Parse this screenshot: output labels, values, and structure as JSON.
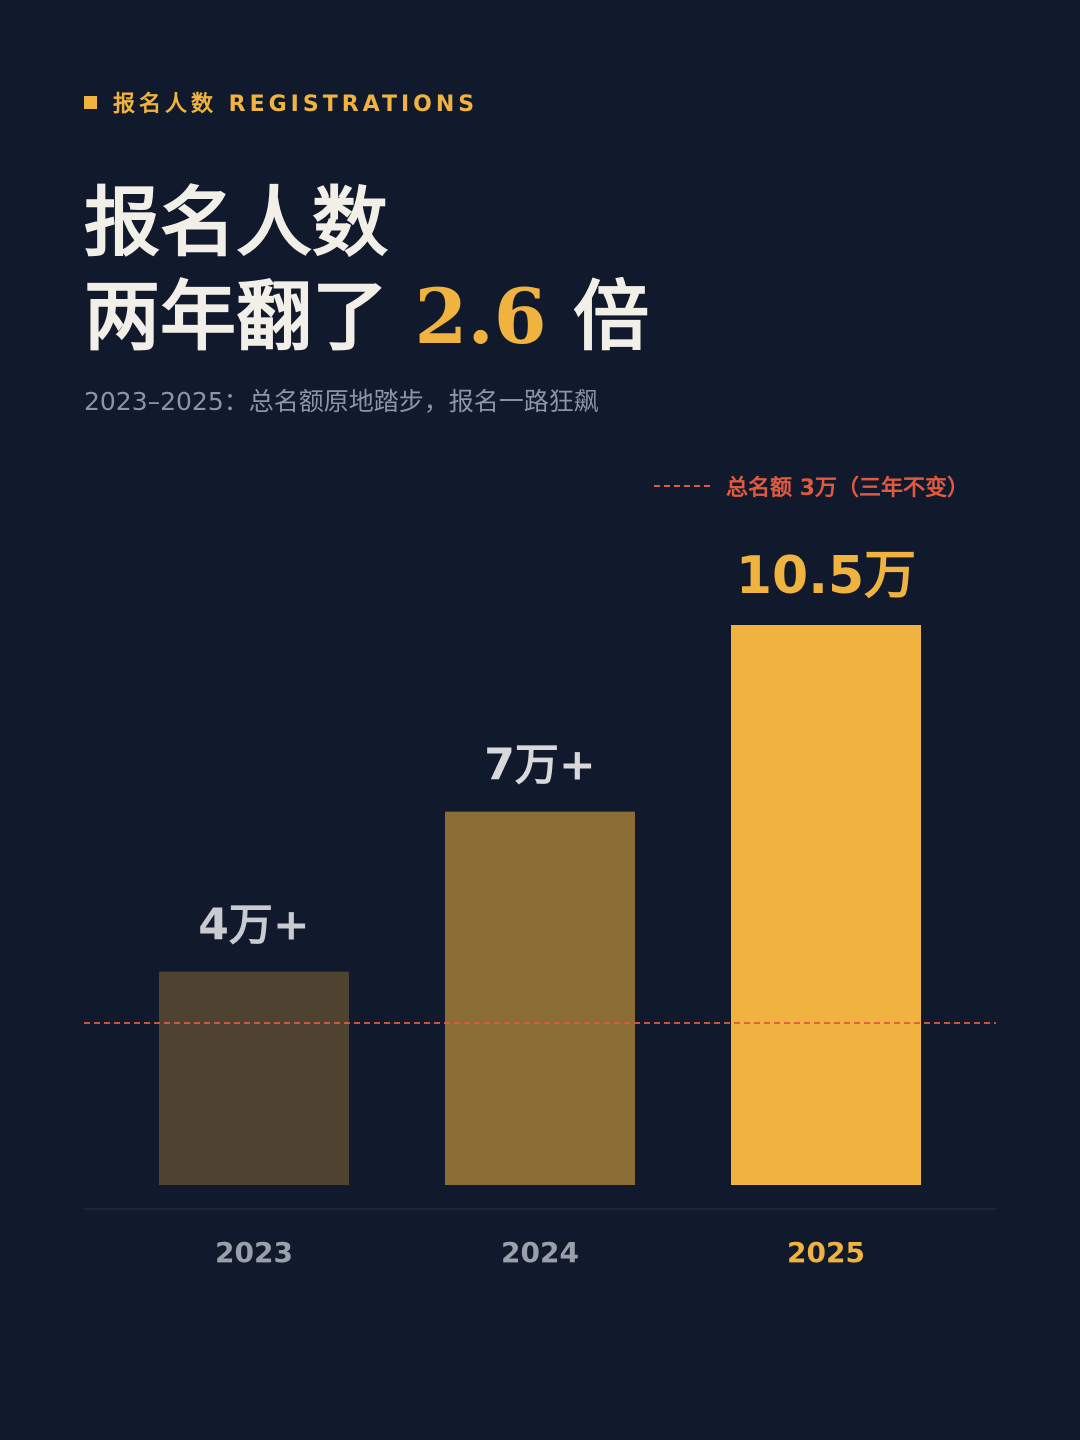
{
  "header": {
    "eyebrow": "报名人数 REGISTRATIONS",
    "title_line1": "报名人数",
    "title_line2_prefix": "两年翻了 ",
    "title_line2_highlight": "2.6",
    "title_line2_suffix": " 倍",
    "subtitle": "2023–2025：总名额原地踏步，报名一路狂飙"
  },
  "quota_legend": "总名额 3万（三年不变）",
  "colors": {
    "background": "#111a2d",
    "accent": "#f0b33f",
    "quota_line": "#df5a40",
    "bar_2023": "#4e4331",
    "bar_2024": "#8a6d35",
    "bar_2025": "#f0b33f"
  },
  "chart_data": {
    "type": "bar",
    "categories": [
      "2023",
      "2024",
      "2025"
    ],
    "values": [
      4,
      7,
      10.5
    ],
    "value_labels": [
      "4万+",
      "7万+",
      "10.5万"
    ],
    "unit": "万",
    "reference_line": {
      "value": 3,
      "label": "总名额 3万（三年不变）"
    },
    "ylim": [
      0,
      10.5
    ],
    "grid": false,
    "legend": "none"
  }
}
